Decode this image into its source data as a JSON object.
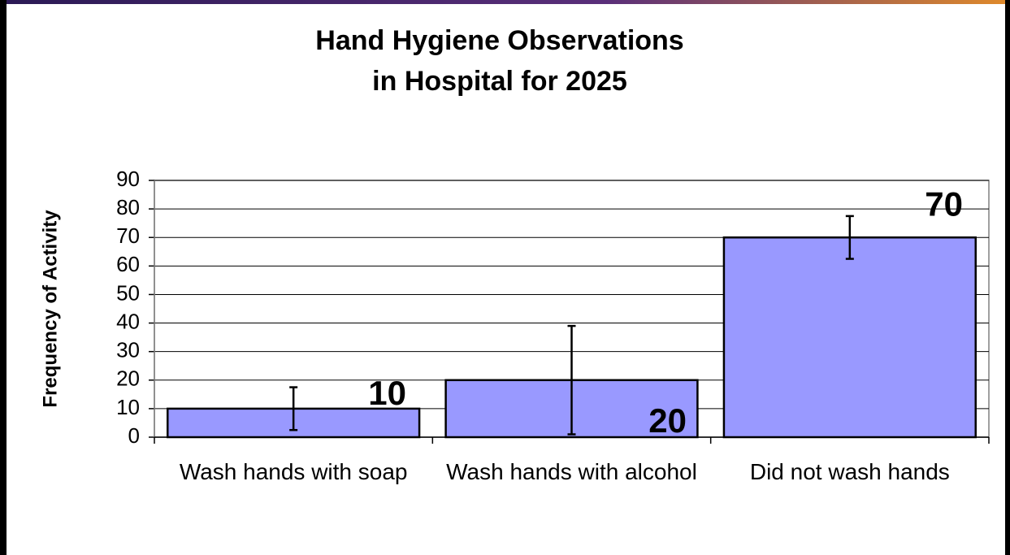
{
  "chart_data": {
    "type": "bar",
    "title": [
      "Hand Hygiene Observations",
      "in Hospital for 2025"
    ],
    "y_label": "Frequency of Activity",
    "categories": [
      "Wash hands with soap",
      "Wash hands with alcohol",
      "Did not wash hands"
    ],
    "values": [
      10,
      20,
      70
    ],
    "errors": [
      7.5,
      19,
      7.5
    ],
    "color": "#9999ff",
    "ylim": [
      0,
      90
    ],
    "yticks": [
      0,
      10,
      20,
      30,
      40,
      50,
      60,
      70,
      80,
      90
    ],
    "grid": true
  }
}
